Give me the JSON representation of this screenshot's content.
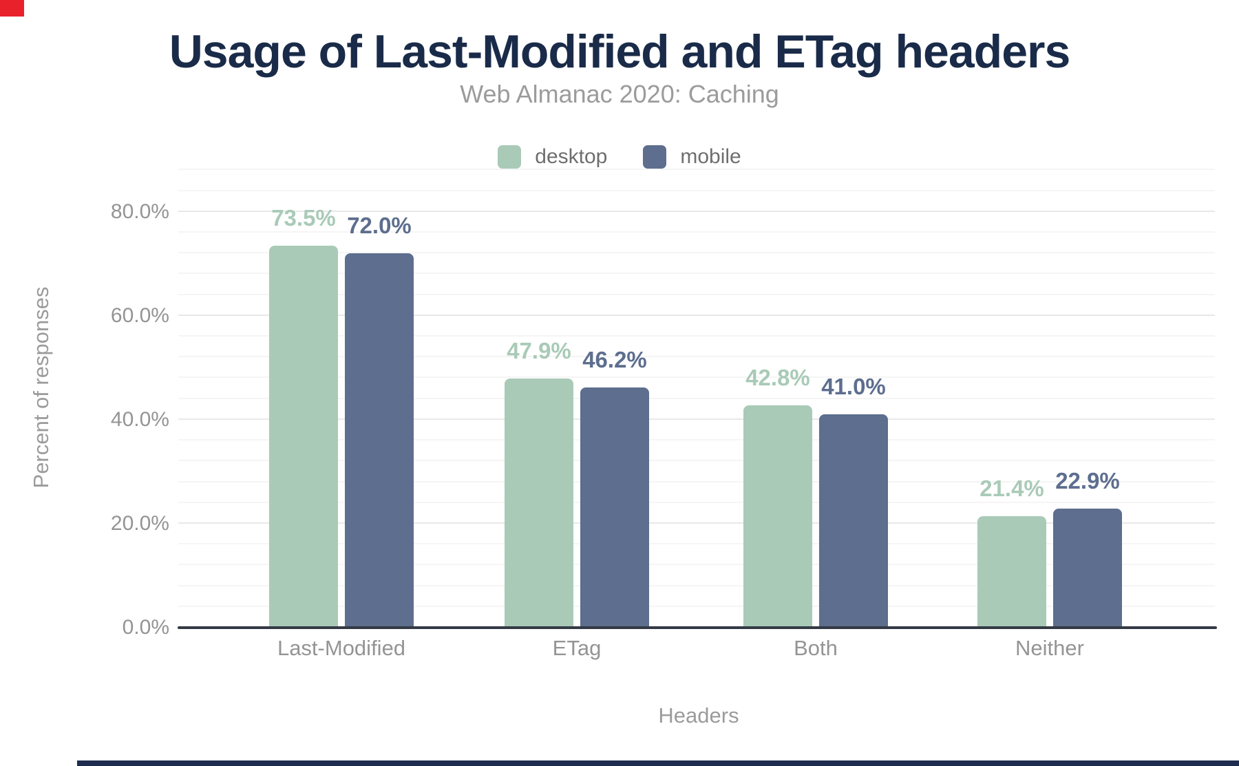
{
  "chart_data": {
    "type": "bar",
    "title": "Usage of Last-Modified and ETag headers",
    "subtitle": "Web Almanac 2020: Caching",
    "xlabel": "Headers",
    "ylabel": "Percent of responses",
    "categories": [
      "Last-Modified",
      "ETag",
      "Both",
      "Neither"
    ],
    "series": [
      {
        "name": "desktop",
        "color": "#a9cab7",
        "values": [
          73.5,
          47.9,
          42.8,
          21.4
        ],
        "labels": [
          "73.5%",
          "47.9%",
          "42.8%",
          "21.4%"
        ]
      },
      {
        "name": "mobile",
        "color": "#5d6e8e",
        "values": [
          72.0,
          46.2,
          41.0,
          22.9
        ],
        "labels": [
          "72.0%",
          "46.2%",
          "41.0%",
          "22.9%"
        ]
      }
    ],
    "y_ticks": [
      {
        "value": 0,
        "label": "0.0%"
      },
      {
        "value": 20,
        "label": "20.0%"
      },
      {
        "value": 40,
        "label": "40.0%"
      },
      {
        "value": 60,
        "label": "60.0%"
      },
      {
        "value": 80,
        "label": "80.0%"
      }
    ],
    "ylim": [
      0,
      88
    ],
    "grid": {
      "minor_step": 4,
      "major_step": 20,
      "gridlines_on": true
    },
    "legend_position": "top"
  },
  "colors": {
    "title": "#1a2b49",
    "subtitle": "#9b9b9b",
    "axis_line": "#333a45",
    "tick_label": "#949494",
    "legend_label": "#6e6e6e",
    "minor_grid": "#f5f5f5",
    "major_grid": "#e8e8e8",
    "top_left_marker": "#e8212a",
    "footer_bar": "#1e2c4f"
  }
}
